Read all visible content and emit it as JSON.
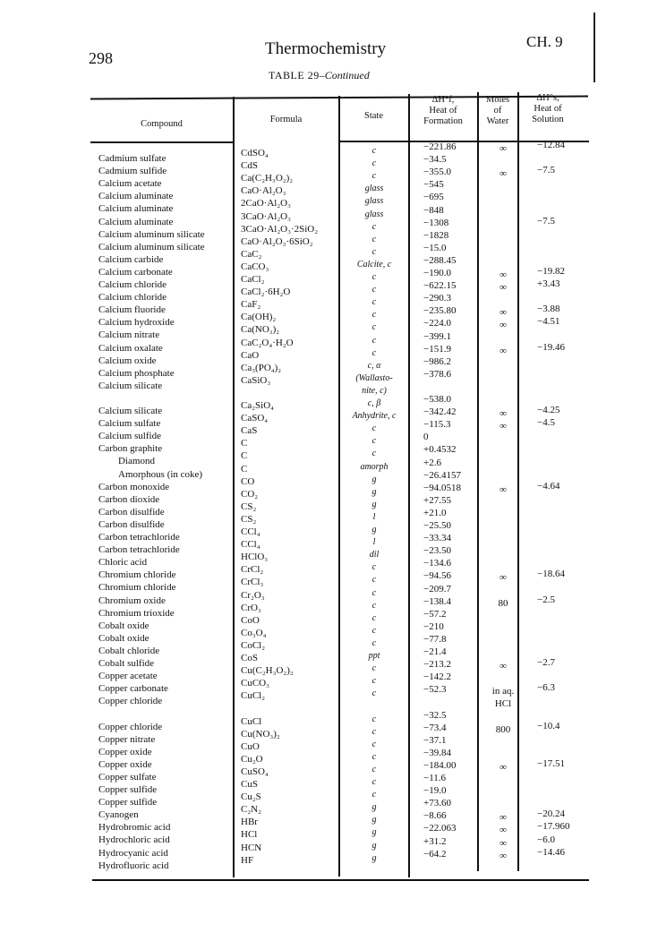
{
  "page": {
    "page_number": "298",
    "running_title": "Thermochemistry",
    "chapter": "CH. 9",
    "table_caption_prefix": "TABLE 29",
    "table_caption_suffix": "–Continued"
  },
  "table": {
    "headers": {
      "compound": "Compound",
      "formula": "Formula",
      "state": "State",
      "heat_formation": [
        "ΔH°f,",
        "Heat of",
        "Formation"
      ],
      "moles_water": [
        "Moles",
        "of",
        "Water"
      ],
      "heat_solution": [
        "ΔH°s,",
        "Heat of",
        "Solution"
      ]
    },
    "compound": [
      "Cadmium sulfate",
      "Cadmium sulfide",
      "Calcium acetate",
      "Calcium aluminate",
      "Calcium aluminate",
      "Calcium aluminate",
      "Calcium aluminum silicate",
      "Calcium aluminum silicate",
      "Calcium carbide",
      "Calcium carbonate",
      "Calcium chloride",
      "Calcium chloride",
      "Calcium fluoride",
      "Calcium hydroxide",
      "Calcium nitrate",
      "Calcium oxalate",
      "Calcium oxide",
      "Calcium phosphate",
      "Calcium silicate",
      "",
      "Calcium silicate",
      "Calcium sulfate",
      "Calcium sulfide",
      "Carbon graphite",
      "Diamond",
      "Amorphous (in coke)",
      "Carbon monoxide",
      "Carbon dioxide",
      "Carbon disulfide",
      "Carbon disulfide",
      "Carbon tetrachloride",
      "Carbon tetrachloride",
      "Chloric acid",
      "Chromium chloride",
      "Chromium chloride",
      "Chromium oxide",
      "Chromium trioxide",
      "Cobalt oxide",
      "Cobalt oxide",
      "Cobalt chloride",
      "Cobalt sulfide",
      "Copper acetate",
      "Copper carbonate",
      "Copper chloride",
      "",
      "Copper chloride",
      "Copper nitrate",
      "Copper oxide",
      "Copper oxide",
      "Copper sulfate",
      "Copper sulfide",
      "Copper sulfide",
      "Cyanogen",
      "Hydrobromic acid",
      "Hydrochloric acid",
      "Hydrocyanic acid",
      "Hydrofluoric acid"
    ],
    "formula": [
      "CdSO₄",
      "CdS",
      "Ca(C₂H₃O₂)₂",
      "CaO·Al₂O₃",
      "2CaO·Al₂O₃",
      "3CaO·Al₂O₃",
      "3CaO·Al₂O₃·2SiO₂",
      "CaO·Al₂O₃·6SiO₂",
      "CaC₂",
      "CaCO₃",
      "CaCl₂",
      "CaCl₂·6H₂O",
      "CaF₂",
      "Ca(OH)₂",
      "Ca(NO₃)₂",
      "CaC₂O₄·H₂O",
      "CaO",
      "Ca₃(PO₄)₂",
      "CaSiO₃",
      "",
      "Ca₂SiO₄",
      "CaSO₄",
      "CaS",
      "C",
      "C",
      "C",
      "CO",
      "CO₂",
      "CS₂",
      "CS₂",
      "CCl₄",
      "CCl₄",
      "HClO₃",
      "CrCl₂",
      "CrCl₃",
      "Cr₂O₃",
      "CrO₃",
      "CoO",
      "Co₃O₄",
      "CoCl₂",
      "CoS",
      "Cu(C₂H₃O₂)₂",
      "CuCO₃",
      "CuCl₂",
      "",
      "CuCl",
      "Cu(NO₃)₂",
      "CuO",
      "Cu₂O",
      "CuSO₄",
      "CuS",
      "Cu₂S",
      "C₂N₂",
      "HBr",
      "HCl",
      "HCN",
      "HF"
    ],
    "state": [
      "c",
      "c",
      "c",
      "glass",
      "glass",
      "glass",
      "c",
      "c",
      "c",
      "Calcite, c",
      "c",
      "c",
      "c",
      "c",
      "c",
      "c",
      "c",
      "c, α",
      "(Wallasto-",
      "nite, c)",
      "c, β",
      "Anhydrite, c",
      "c",
      "c",
      "c",
      "amorph",
      "g",
      "g",
      "g",
      "l",
      "g",
      "l",
      "dil",
      "c",
      "c",
      "c",
      "c",
      "c",
      "c",
      "c",
      "ppt",
      "c",
      "c",
      "c",
      "",
      "c",
      "c",
      "c",
      "c",
      "c",
      "c",
      "c",
      "g",
      "g",
      "g",
      "g",
      "g"
    ],
    "heat_formation": [
      "−221.86",
      "−34.5",
      "−355.0",
      "−545",
      "−695",
      "−848",
      "−1308",
      "−1828",
      "−15.0",
      "−288.45",
      "−190.0",
      "−622.15",
      "−290.3",
      "−235.80",
      "−224.0",
      "−399.1",
      "−151.9",
      "−986.2",
      "−378.6",
      "",
      "−538.0",
      "−342.42",
      "−115.3",
      "0",
      "+0.4532",
      "+2.6",
      "−26.4157",
      "−94.0518",
      "+27.55",
      "+21.0",
      "−25.50",
      "−33.34",
      "−23.50",
      "−134.6",
      "−94.56",
      "−209.7",
      "−138.4",
      "−57.2",
      "−210",
      "−77.8",
      "−21.4",
      "−213.2",
      "−142.2",
      "−52.3",
      "",
      "−32.5",
      "−73.4",
      "−37.1",
      "−39.84",
      "−184.00",
      "−11.6",
      "−19.0",
      "+73.60",
      "−8.66",
      "−22.063",
      "+31.2",
      "−64.2"
    ],
    "moles_water": [
      "∞",
      "",
      "∞",
      "",
      "",
      "",
      "",
      "",
      "",
      "",
      "∞",
      "∞",
      "",
      "∞",
      "∞",
      "",
      "∞",
      "",
      "",
      "",
      "",
      "∞",
      "∞",
      "",
      "",
      "",
      "",
      "∞",
      "",
      "",
      "",
      "",
      "",
      "",
      "∞",
      "",
      "80",
      "",
      "",
      "",
      "",
      "∞",
      "",
      "in aq.",
      "HCl",
      "",
      "800",
      "",
      "",
      "∞",
      "",
      "",
      "",
      "∞",
      "∞",
      "∞",
      "∞"
    ],
    "heat_solution": [
      "−12.84",
      "",
      "−7.5",
      "",
      "",
      "",
      "−7.5",
      "",
      "",
      "",
      "−19.82",
      "+3.43",
      "",
      "−3.88",
      "−4.51",
      "",
      "−19.46",
      "",
      "",
      "",
      "",
      "−4.25",
      "−4.5",
      "",
      "",
      "",
      "",
      "−4.64",
      "",
      "",
      "",
      "",
      "",
      "",
      "−18.64",
      "",
      "−2.5",
      "",
      "",
      "",
      "",
      "−2.7",
      "",
      "−6.3",
      "",
      "",
      "−10.4",
      "",
      "",
      "−17.51",
      "",
      "",
      "",
      "−20.24",
      "−17.960",
      "−6.0",
      "−14.46"
    ]
  }
}
